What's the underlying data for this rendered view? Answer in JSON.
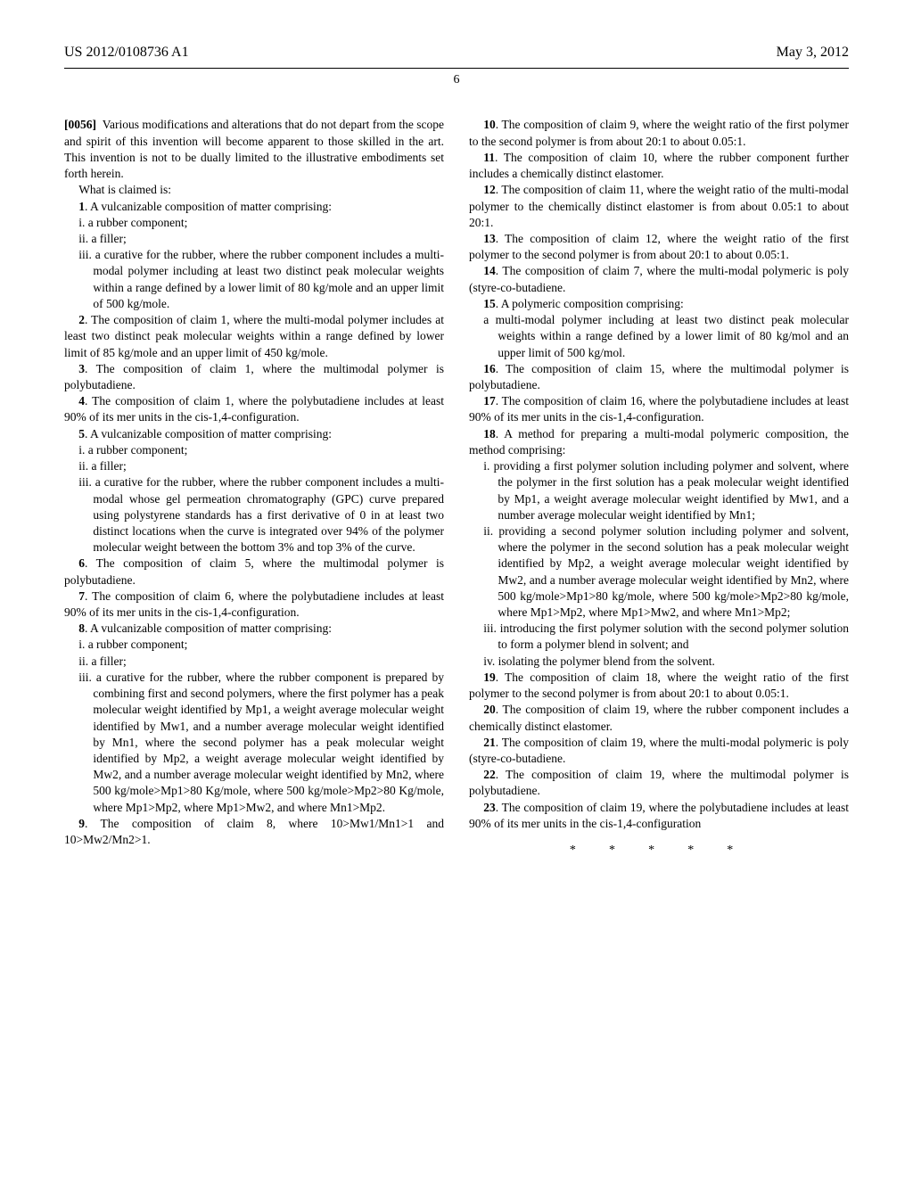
{
  "header": {
    "left": "US 2012/0108736 A1",
    "right": "May 3, 2012"
  },
  "page_number": "6",
  "para0056_num": "[0056]",
  "para0056_text": "Various modifications and alterations that do not depart from the scope and spirit of this invention will become apparent to those skilled in the art. This invention is not to be dually limited to the illustrative embodiments set forth herein.",
  "what_claimed": "What is claimed is:",
  "claims": {
    "c1": {
      "num": "1",
      "lead": ". A vulcanizable composition of matter comprising:",
      "i": "i. a rubber component;",
      "ii": "ii. a filler;",
      "iii": "iii. a curative for the rubber, where the rubber component includes a multi-modal polymer including at least two distinct peak molecular weights within a range defined by a lower limit of 80 kg/mole and an upper limit of 500 kg/mole."
    },
    "c2": {
      "num": "2",
      "text": ". The composition of claim 1, where the multi-modal polymer includes at least two distinct peak molecular weights within a range defined by lower limit of 85 kg/mole and an upper limit of 450 kg/mole."
    },
    "c3": {
      "num": "3",
      "text": ". The composition of claim 1, where the multimodal polymer is polybutadiene."
    },
    "c4": {
      "num": "4",
      "text": ". The composition of claim 1, where the polybutadiene includes at least 90% of its mer units in the cis-1,4-configuration."
    },
    "c5": {
      "num": "5",
      "lead": ". A vulcanizable composition of matter comprising:",
      "i": "i. a rubber component;",
      "ii": "ii. a filler;",
      "iii": "iii. a curative for the rubber, where the rubber component includes a multi-modal whose gel permeation chromatography (GPC) curve prepared using polystyrene standards has a first derivative of 0 in at least two distinct locations when the curve is integrated over 94% of the polymer molecular weight between the bottom 3% and top 3% of the curve."
    },
    "c6": {
      "num": "6",
      "text": ". The composition of claim 5, where the multimodal polymer is polybutadiene."
    },
    "c7": {
      "num": "7",
      "text": ". The composition of claim 6, where the polybutadiene includes at least 90% of its mer units in the cis-1,4-configuration."
    },
    "c8": {
      "num": "8",
      "lead": ". A vulcanizable composition of matter comprising:",
      "i": "i. a rubber component;",
      "ii": "ii. a filler;",
      "iii": "iii. a curative for the rubber, where the rubber component is prepared by combining first and second polymers, where the first polymer has a peak molecular weight identified by Mp1, a weight average molecular weight identified by Mw1, and a number average molecular weight identified by Mn1, where the second polymer has a peak molecular weight identified by Mp2, a weight average molecular weight identified by Mw2, and a number average molecular weight identified by Mn2, where 500 kg/mole>Mp1>80 Kg/mole, where 500 kg/mole>Mp2>80 Kg/mole, where Mp1>Mp2, where Mp1>Mw2, and where Mn1>Mp2."
    },
    "c9": {
      "num": "9",
      "text": ". The composition of claim 8, where 10>Mw1/Mn1>1 and 10>Mw2/Mn2>1."
    },
    "c10": {
      "num": "10",
      "text": ". The composition of claim 9, where the weight ratio of the first polymer to the second polymer is from about 20:1 to about 0.05:1."
    },
    "c11": {
      "num": "11",
      "text": ". The composition of claim 10, where the rubber component further includes a chemically distinct elastomer."
    },
    "c12": {
      "num": "12",
      "text": ". The composition of claim 11, where the weight ratio of the multi-modal polymer to the chemically distinct elastomer is from about 0.05:1 to about 20:1."
    },
    "c13": {
      "num": "13",
      "text": ". The composition of claim 12, where the weight ratio of the first polymer to the second polymer is from about 20:1 to about 0.05:1."
    },
    "c14": {
      "num": "14",
      "text": ". The composition of claim 7, where the multi-modal polymeric is poly (styre-co-butadiene."
    },
    "c15": {
      "num": "15",
      "lead": ". A polymeric composition comprising:",
      "body": "a multi-modal polymer including at least two distinct peak molecular weights within a range defined by a lower limit of 80 kg/mol and an upper limit of 500 kg/mol."
    },
    "c16": {
      "num": "16",
      "text": ". The composition of claim 15, where the multimodal polymer is polybutadiene."
    },
    "c17": {
      "num": "17",
      "text": ". The composition of claim 16, where the polybutadiene includes at least 90% of its mer units in the cis-1,4-configuration."
    },
    "c18": {
      "num": "18",
      "lead": ". A method for preparing a multi-modal polymeric composition, the method comprising:",
      "i": "i. providing a first polymer solution including polymer and solvent, where the polymer in the first solution has a peak molecular weight identified by Mp1, a weight average molecular weight identified by Mw1, and a number average molecular weight identified by Mn1;",
      "ii": "ii. providing a second polymer solution including polymer and solvent, where the polymer in the second solution has a peak molecular weight identified by Mp2, a weight average molecular weight identified by Mw2, and a number average molecular weight identified by Mn2, where 500 kg/mole>Mp1>80 kg/mole, where 500 kg/mole>Mp2>80 kg/mole, where Mp1>Mp2, where Mp1>Mw2, and where Mn1>Mp2;",
      "iii": "iii. introducing the first polymer solution with the second polymer solution to form a polymer blend in solvent; and",
      "iv": "iv. isolating the polymer blend from the solvent."
    },
    "c19": {
      "num": "19",
      "text": ". The composition of claim 18, where the weight ratio of the first polymer to the second polymer is from about 20:1 to about 0.05:1."
    },
    "c20": {
      "num": "20",
      "text": ". The composition of claim 19, where the rubber component includes a chemically distinct elastomer."
    },
    "c21": {
      "num": "21",
      "text": ". The composition of claim 19, where the multi-modal polymeric is poly (styre-co-butadiene."
    },
    "c22": {
      "num": "22",
      "text": ". The composition of claim 19, where the multimodal polymer is polybutadiene."
    },
    "c23": {
      "num": "23",
      "text": ". The composition of claim 19, where the polybutadiene includes at least 90% of its mer units in the cis-1,4-configuration"
    }
  },
  "stars": "*   *   *   *   *"
}
